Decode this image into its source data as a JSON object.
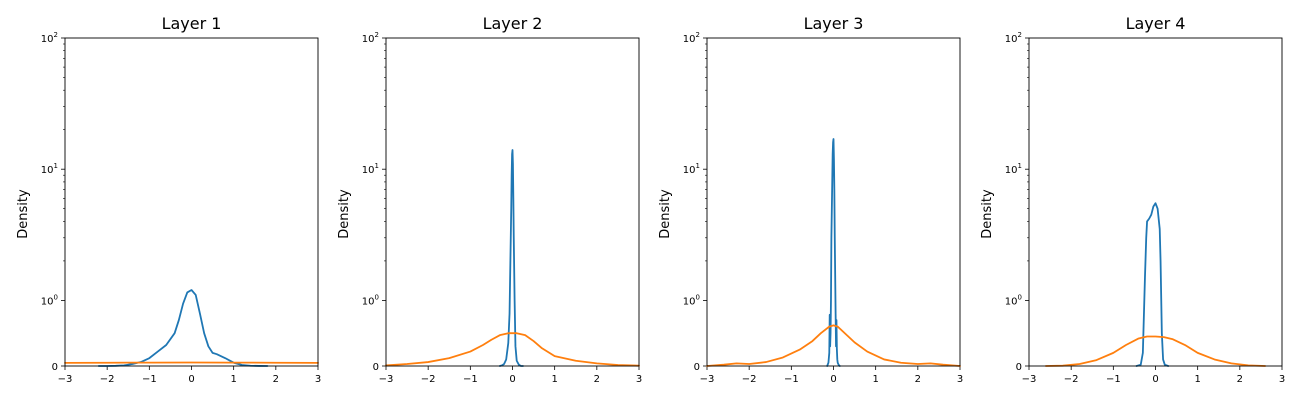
{
  "chart_data": [
    {
      "type": "line",
      "title": "Layer 1",
      "ylabel": "Density",
      "xlim": [
        -3,
        3
      ],
      "xticks": [
        "−3",
        "−2",
        "−1",
        "0",
        "1",
        "2",
        "3"
      ],
      "yscale": "symlog",
      "yticks": [
        "0",
        "10^0",
        "10^1",
        "10^2"
      ],
      "series": [
        {
          "color": "#1f77b4",
          "x": [
            -2.2,
            -2.0,
            -1.8,
            -1.6,
            -1.4,
            -1.2,
            -1.0,
            -0.8,
            -0.6,
            -0.4,
            -0.3,
            -0.2,
            -0.1,
            0.0,
            0.1,
            0.2,
            0.3,
            0.4,
            0.5,
            0.6,
            0.8,
            1.0,
            1.2,
            1.4,
            1.6,
            1.8
          ],
          "y": [
            0.0,
            0.0,
            0.003,
            0.01,
            0.03,
            0.06,
            0.12,
            0.22,
            0.32,
            0.5,
            0.7,
            0.95,
            1.15,
            1.2,
            1.1,
            0.8,
            0.5,
            0.3,
            0.2,
            0.18,
            0.12,
            0.05,
            0.015,
            0.004,
            0.001,
            0.0
          ]
        },
        {
          "color": "#ff7f0e",
          "x": [
            -3,
            -2,
            -1,
            0,
            1,
            2,
            3
          ],
          "y": [
            0.048,
            0.05,
            0.052,
            0.053,
            0.052,
            0.05,
            0.048
          ]
        }
      ]
    },
    {
      "type": "line",
      "title": "Layer 2",
      "ylabel": "Density",
      "xlim": [
        -3,
        3
      ],
      "xticks": [
        "−3",
        "−2",
        "−1",
        "0",
        "1",
        "2",
        "3"
      ],
      "yscale": "symlog",
      "yticks": [
        "0",
        "10^0",
        "10^1",
        "10^2"
      ],
      "series": [
        {
          "color": "#1f77b4",
          "x": [
            -0.3,
            -0.25,
            -0.2,
            -0.15,
            -0.1,
            -0.07,
            -0.05,
            -0.03,
            -0.02,
            -0.01,
            0.0,
            0.01,
            0.02,
            0.03,
            0.05,
            0.07,
            0.1,
            0.15,
            0.2,
            0.25
          ],
          "y": [
            0.0,
            0.01,
            0.03,
            0.1,
            0.35,
            0.8,
            2.0,
            5.0,
            9.0,
            13.0,
            14.0,
            11.0,
            6.0,
            3.0,
            1.0,
            0.3,
            0.08,
            0.02,
            0.0,
            0.0
          ]
        },
        {
          "color": "#ff7f0e",
          "x": [
            -3.0,
            -2.5,
            -2.0,
            -1.5,
            -1.0,
            -0.7,
            -0.5,
            -0.3,
            -0.1,
            0.0,
            0.1,
            0.3,
            0.5,
            0.7,
            1.0,
            1.5,
            2.0,
            2.5,
            3.0
          ],
          "y": [
            0.01,
            0.03,
            0.06,
            0.12,
            0.22,
            0.32,
            0.4,
            0.47,
            0.5,
            0.5,
            0.5,
            0.47,
            0.38,
            0.27,
            0.15,
            0.08,
            0.04,
            0.015,
            0.005
          ]
        }
      ]
    },
    {
      "type": "line",
      "title": "Layer 3",
      "ylabel": "Density",
      "xlim": [
        -3,
        3
      ],
      "xticks": [
        "−3",
        "−2",
        "−1",
        "0",
        "1",
        "2",
        "3"
      ],
      "yscale": "symlog",
      "yticks": [
        "0",
        "10^0",
        "10^1",
        "10^2"
      ],
      "series": [
        {
          "color": "#1f77b4",
          "x": [
            -0.15,
            -0.12,
            -0.1,
            -0.09,
            -0.08,
            -0.07,
            -0.06,
            -0.05,
            -0.03,
            -0.02,
            -0.01,
            0.0,
            0.01,
            0.02,
            0.03,
            0.05,
            0.06,
            0.07,
            0.08,
            0.09,
            0.1,
            0.12,
            0.15
          ],
          "y": [
            0.0,
            0.05,
            0.2,
            0.78,
            0.3,
            0.5,
            1.0,
            3.0,
            8.0,
            13.0,
            16.0,
            17.0,
            12.0,
            7.0,
            3.0,
            0.8,
            0.3,
            0.7,
            0.25,
            0.1,
            0.05,
            0.02,
            0.0
          ]
        },
        {
          "color": "#ff7f0e",
          "x": [
            -3.0,
            -2.6,
            -2.3,
            -2.0,
            -1.6,
            -1.2,
            -0.8,
            -0.5,
            -0.3,
            -0.1,
            0.0,
            0.1,
            0.3,
            0.5,
            0.8,
            1.2,
            1.6,
            2.0,
            2.3,
            2.6,
            3.0
          ],
          "y": [
            0.0,
            0.02,
            0.04,
            0.03,
            0.06,
            0.13,
            0.25,
            0.38,
            0.5,
            0.6,
            0.62,
            0.6,
            0.48,
            0.36,
            0.22,
            0.1,
            0.05,
            0.03,
            0.04,
            0.02,
            0.0
          ]
        }
      ]
    },
    {
      "type": "line",
      "title": "Layer 4",
      "ylabel": "Density",
      "xlim": [
        -3,
        3
      ],
      "xticks": [
        "−3",
        "−2",
        "−1",
        "0",
        "1",
        "2",
        "3"
      ],
      "yscale": "symlog",
      "yticks": [
        "0",
        "10^0",
        "10^1",
        "10^2"
      ],
      "series": [
        {
          "color": "#1f77b4",
          "x": [
            -0.45,
            -0.35,
            -0.3,
            -0.25,
            -0.22,
            -0.2,
            -0.15,
            -0.1,
            -0.05,
            0.0,
            0.05,
            0.1,
            0.12,
            0.15,
            0.18,
            0.22,
            0.3
          ],
          "y": [
            0.0,
            0.02,
            0.2,
            1.5,
            3.0,
            4.0,
            4.2,
            4.5,
            5.2,
            5.5,
            5.0,
            3.5,
            2.0,
            0.5,
            0.1,
            0.02,
            0.0
          ]
        },
        {
          "color": "#ff7f0e",
          "x": [
            -2.6,
            -2.2,
            -1.8,
            -1.4,
            -1.0,
            -0.7,
            -0.4,
            -0.2,
            0.0,
            0.2,
            0.4,
            0.7,
            1.0,
            1.4,
            1.8,
            2.2,
            2.6
          ],
          "y": [
            0.0,
            0.005,
            0.03,
            0.09,
            0.2,
            0.32,
            0.42,
            0.45,
            0.45,
            0.44,
            0.41,
            0.32,
            0.2,
            0.1,
            0.04,
            0.01,
            0.0
          ]
        }
      ]
    }
  ]
}
